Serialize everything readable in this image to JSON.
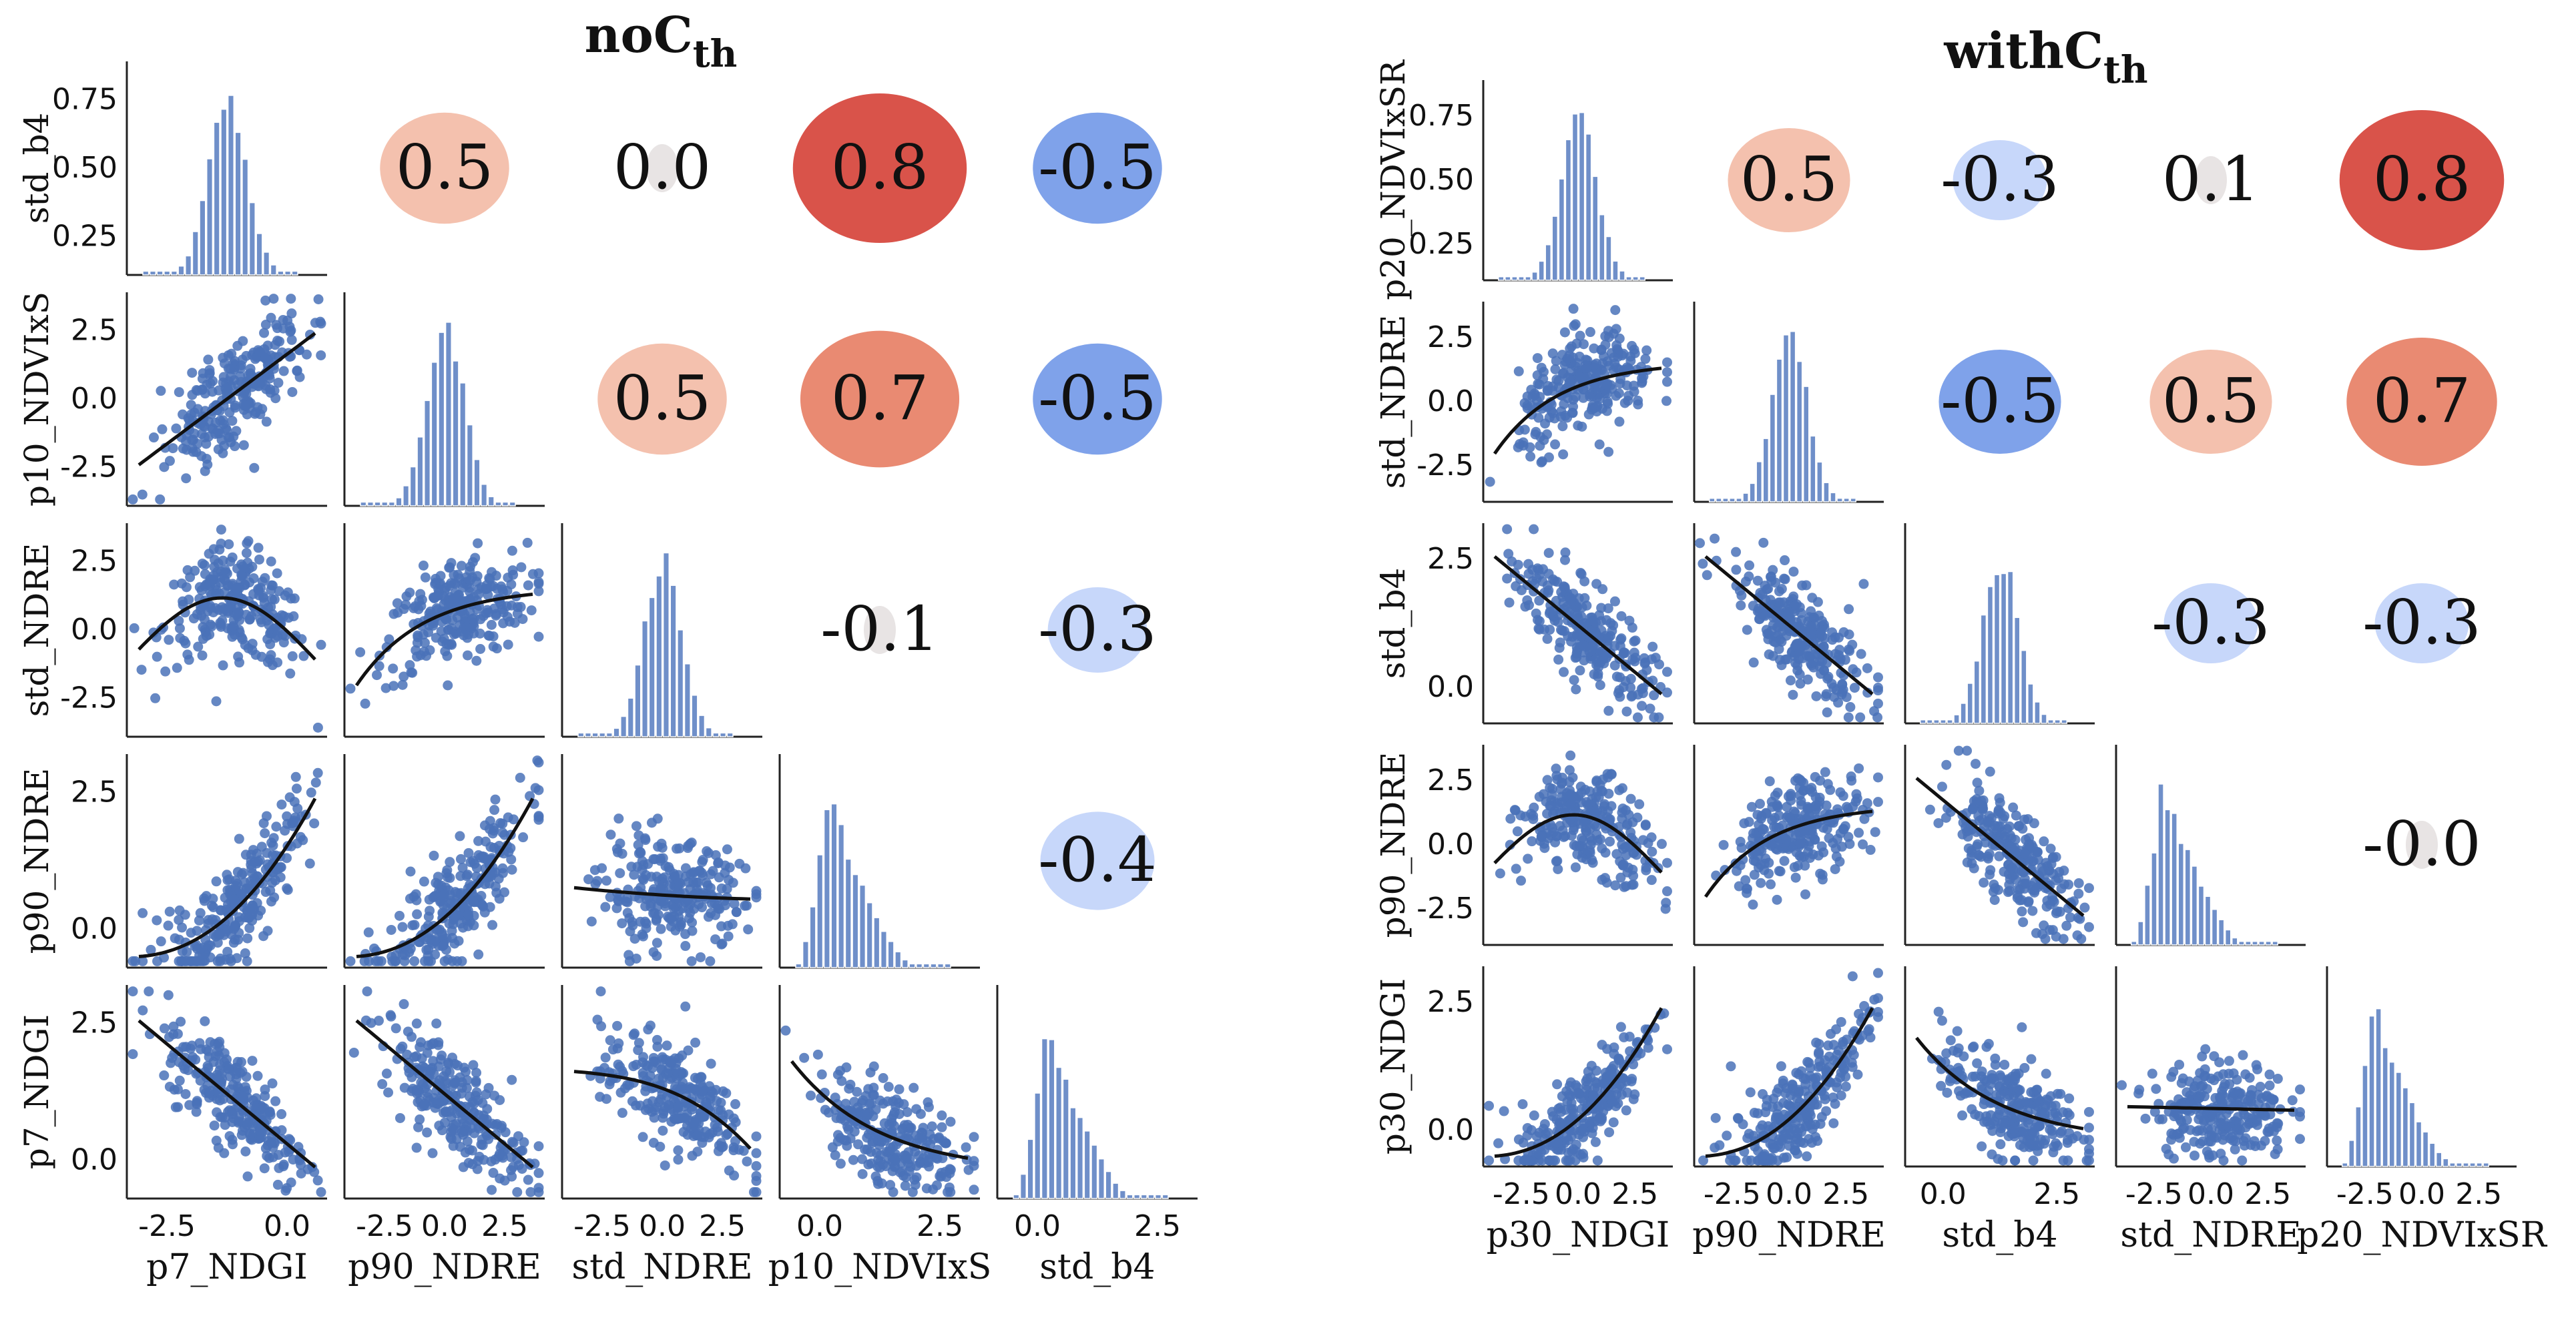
{
  "chart_data": [
    {
      "type": "pairplot",
      "title_base": "noC",
      "title_sub": "th",
      "variables": [
        "std_b4",
        "p10_NDVIxS",
        "std_NDRE",
        "p90_NDRE",
        "p7_NDGI"
      ],
      "x_axis_labels": [
        "p7_NDGI",
        "p90_NDRE",
        "std_NDRE",
        "p10_NDVIxS",
        "std_b4"
      ],
      "row_axis_labels": [
        "std_b4",
        "p10_NDVIxS",
        "std_NDRE",
        "p90_NDRE",
        "p7_NDGI"
      ],
      "diagonal_y_ticks": [
        "0.25",
        "0.50",
        "0.75"
      ],
      "x_ticks": [
        [
          "-2.5",
          "0.0"
        ],
        [
          "-2.5",
          "0.0",
          "2.5"
        ],
        [
          "-2.5",
          "0.0",
          "2.5"
        ],
        [
          "0.0",
          "2.5"
        ],
        [
          "0.0",
          "2.5"
        ]
      ],
      "x_tick_text": [
        "-2.50.0",
        "2.5"
      ],
      "y_ticks": [
        [
          "-2.5",
          "0.0",
          "2.5"
        ],
        [
          "-2.5",
          "0.0",
          "2.5"
        ],
        [
          "0.0",
          "2.5"
        ],
        [
          "0.0",
          "2.5"
        ]
      ],
      "correlations": [
        {
          "row": 0,
          "col": 1,
          "value": "0.5"
        },
        {
          "row": 0,
          "col": 2,
          "value": "0.0"
        },
        {
          "row": 0,
          "col": 3,
          "value": "0.8"
        },
        {
          "row": 0,
          "col": 4,
          "value": "-0.5"
        },
        {
          "row": 1,
          "col": 2,
          "value": "0.5"
        },
        {
          "row": 1,
          "col": 3,
          "value": "0.7"
        },
        {
          "row": 1,
          "col": 4,
          "value": "-0.5"
        },
        {
          "row": 2,
          "col": 3,
          "value": "-0.1"
        },
        {
          "row": 2,
          "col": 4,
          "value": "-0.3"
        },
        {
          "row": 3,
          "col": 4,
          "value": "-0.4"
        }
      ],
      "scatter_cells": [
        {
          "row": 1,
          "col": 0,
          "trend": "linear-up"
        },
        {
          "row": 2,
          "col": 0,
          "trend": "hump"
        },
        {
          "row": 2,
          "col": 1,
          "trend": "up-plateau"
        },
        {
          "row": 3,
          "col": 0,
          "trend": "convex-up"
        },
        {
          "row": 3,
          "col": 1,
          "trend": "convex-up"
        },
        {
          "row": 3,
          "col": 2,
          "trend": "slight-down"
        },
        {
          "row": 4,
          "col": 0,
          "trend": "down"
        },
        {
          "row": 4,
          "col": 1,
          "trend": "down"
        },
        {
          "row": 4,
          "col": 2,
          "trend": "down-late"
        },
        {
          "row": 4,
          "col": 3,
          "trend": "down-flat"
        }
      ]
    },
    {
      "type": "pairplot",
      "title_base": "withC",
      "title_sub": "th",
      "variables": [
        "p20_NDVIxSR",
        "std_NDRE",
        "std_b4",
        "p90_NDRE",
        "p30_NDGI"
      ],
      "x_axis_labels": [
        "p30_NDGI",
        "p90_NDRE",
        "std_b4",
        "std_NDRE",
        "p20_NDVIxSR"
      ],
      "row_axis_labels": [
        "p20_NDVIxSR",
        "std_NDRE",
        "std_b4",
        "p90_NDRE",
        "p30_NDGI"
      ],
      "diagonal_y_ticks": [
        "0.25",
        "0.50",
        "0.75"
      ],
      "x_ticks": [
        [
          "-2.5",
          "0.0",
          "2.5"
        ],
        [
          "-2.5",
          "0.0",
          "2.5"
        ],
        [
          "0.0",
          "2.5"
        ],
        [
          "-2.5",
          "0.0",
          "2.5"
        ],
        [
          "-2.5",
          "0.0",
          "2.5"
        ]
      ],
      "x_tick_text": [
        "-2.50.0",
        "2.5"
      ],
      "y_ticks": [
        [
          "-2.5",
          "0.0",
          "2.5"
        ],
        [
          "0.0",
          "2.5"
        ],
        [
          "-2.5",
          "0.0",
          "2.5"
        ],
        [
          "0.0",
          "2.5"
        ]
      ],
      "correlations": [
        {
          "row": 0,
          "col": 1,
          "value": "0.5"
        },
        {
          "row": 0,
          "col": 2,
          "value": "-0.3"
        },
        {
          "row": 0,
          "col": 3,
          "value": "0.1"
        },
        {
          "row": 0,
          "col": 4,
          "value": "0.8"
        },
        {
          "row": 1,
          "col": 2,
          "value": "-0.5"
        },
        {
          "row": 1,
          "col": 3,
          "value": "0.5"
        },
        {
          "row": 1,
          "col": 4,
          "value": "0.7"
        },
        {
          "row": 2,
          "col": 3,
          "value": "-0.3"
        },
        {
          "row": 2,
          "col": 4,
          "value": "-0.3"
        },
        {
          "row": 3,
          "col": 4,
          "value": "-0.0"
        }
      ],
      "scatter_cells": [
        {
          "row": 1,
          "col": 0,
          "trend": "up-plateau"
        },
        {
          "row": 2,
          "col": 0,
          "trend": "down"
        },
        {
          "row": 2,
          "col": 1,
          "trend": "down"
        },
        {
          "row": 3,
          "col": 0,
          "trend": "hump"
        },
        {
          "row": 3,
          "col": 1,
          "trend": "up-plateau"
        },
        {
          "row": 3,
          "col": 2,
          "trend": "down"
        },
        {
          "row": 4,
          "col": 0,
          "trend": "convex-up"
        },
        {
          "row": 4,
          "col": 1,
          "trend": "convex-up"
        },
        {
          "row": 4,
          "col": 2,
          "trend": "down-flat"
        },
        {
          "row": 4,
          "col": 3,
          "trend": "flat"
        }
      ]
    }
  ],
  "colors": {
    "point": "#4a72b8",
    "bar": "#6f8fc9",
    "trend": "#111111",
    "axis": "#222222",
    "positive_strong": "#d9534a",
    "positive_light": "#f4c1ae",
    "negative_strong": "#7fa2ea",
    "negative_light": "#c7d7fa",
    "neutral": "#e8e4e4"
  }
}
